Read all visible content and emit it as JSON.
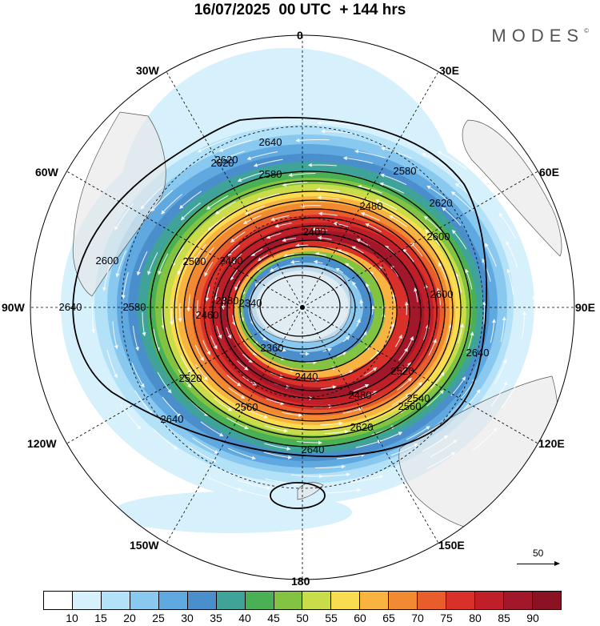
{
  "header": {
    "title": "16/07/2025  00 UTC  + 144 hrs",
    "brand": "MODES",
    "brand_mark": "©"
  },
  "map": {
    "projection": "south-polar-stereographic",
    "longitude_labels": [
      "0",
      "30E",
      "60E",
      "90E",
      "120E",
      "150E",
      "180",
      "150W",
      "120W",
      "90W",
      "60W",
      "30W"
    ],
    "contour_labels": [
      "2640",
      "2620",
      "2580",
      "2480",
      "2600",
      "2620",
      "2600",
      "2640",
      "2400",
      "2400",
      "2600",
      "2580",
      "2460",
      "2520",
      "2560",
      "2640",
      "2640",
      "2380",
      "2340",
      "2360",
      "2440",
      "2480",
      "2520",
      "2560",
      "2540",
      "2620",
      "2640",
      "2620",
      "2580",
      "2500"
    ],
    "wind_reference": {
      "value": "50"
    },
    "fill_colors": [
      "#ffffff",
      "#d6f0fc",
      "#b3e1f8",
      "#89c8ef",
      "#5fa8e0",
      "#4a8fcc",
      "#3fa39a",
      "#4ab055",
      "#82c341",
      "#c9dc4a",
      "#f9dc4f",
      "#f8b340",
      "#f28a32",
      "#e85d2b",
      "#d9302a",
      "#c01f2a",
      "#a3172a",
      "#8a1222"
    ]
  },
  "colorbar": {
    "ticks": [
      "10",
      "15",
      "20",
      "25",
      "30",
      "35",
      "40",
      "45",
      "50",
      "55",
      "60",
      "65",
      "70",
      "75",
      "80",
      "85",
      "90"
    ],
    "colors": [
      "#ffffff",
      "#d6f0fc",
      "#b3e1f8",
      "#89c8ef",
      "#5fa8e0",
      "#4a8fcc",
      "#3fa39a",
      "#4ab055",
      "#82c341",
      "#c9dc4a",
      "#f9dc4f",
      "#f8b340",
      "#f28a32",
      "#e85d2b",
      "#d9302a",
      "#c01f2a",
      "#a3172a",
      "#8a1222"
    ]
  }
}
